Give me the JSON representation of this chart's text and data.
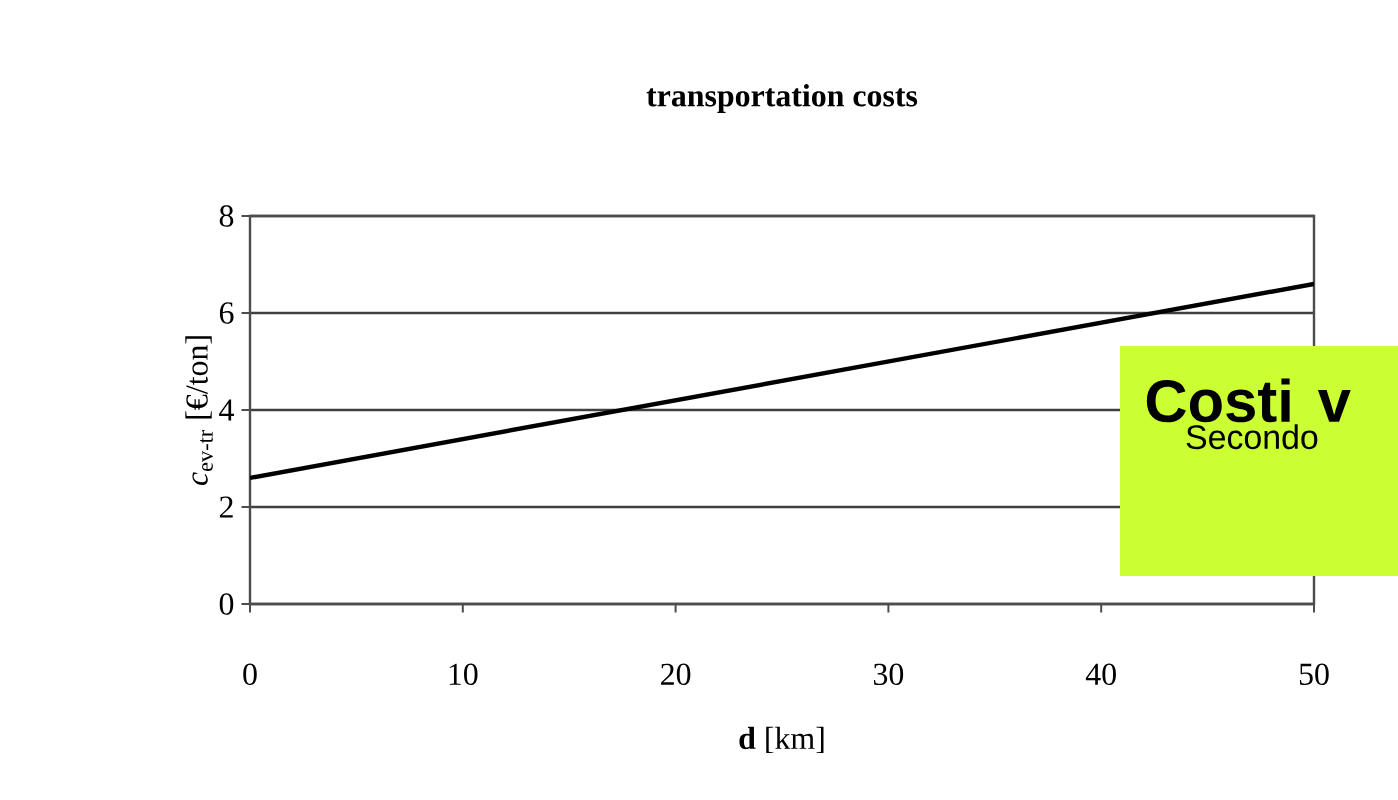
{
  "chart_data": {
    "type": "line",
    "title": "transportation costs",
    "xlabel": "**d** [km]",
    "ylabel": "*c*$_{ev-tr}$ [€/ton]",
    "x": [
      0,
      50
    ],
    "series": [
      {
        "color": "#000000",
        "values": [
          2.6,
          6.6
        ]
      }
    ],
    "xlim": [
      0,
      50
    ],
    "xticks": [
      0,
      10,
      20,
      30,
      40,
      50
    ],
    "ylim": [
      0,
      8
    ],
    "yticks": [
      0,
      2,
      4,
      6,
      8
    ],
    "grid": "y",
    "annotations": [
      "**Costi v**",
      "Secondo"
    ]
  }
}
